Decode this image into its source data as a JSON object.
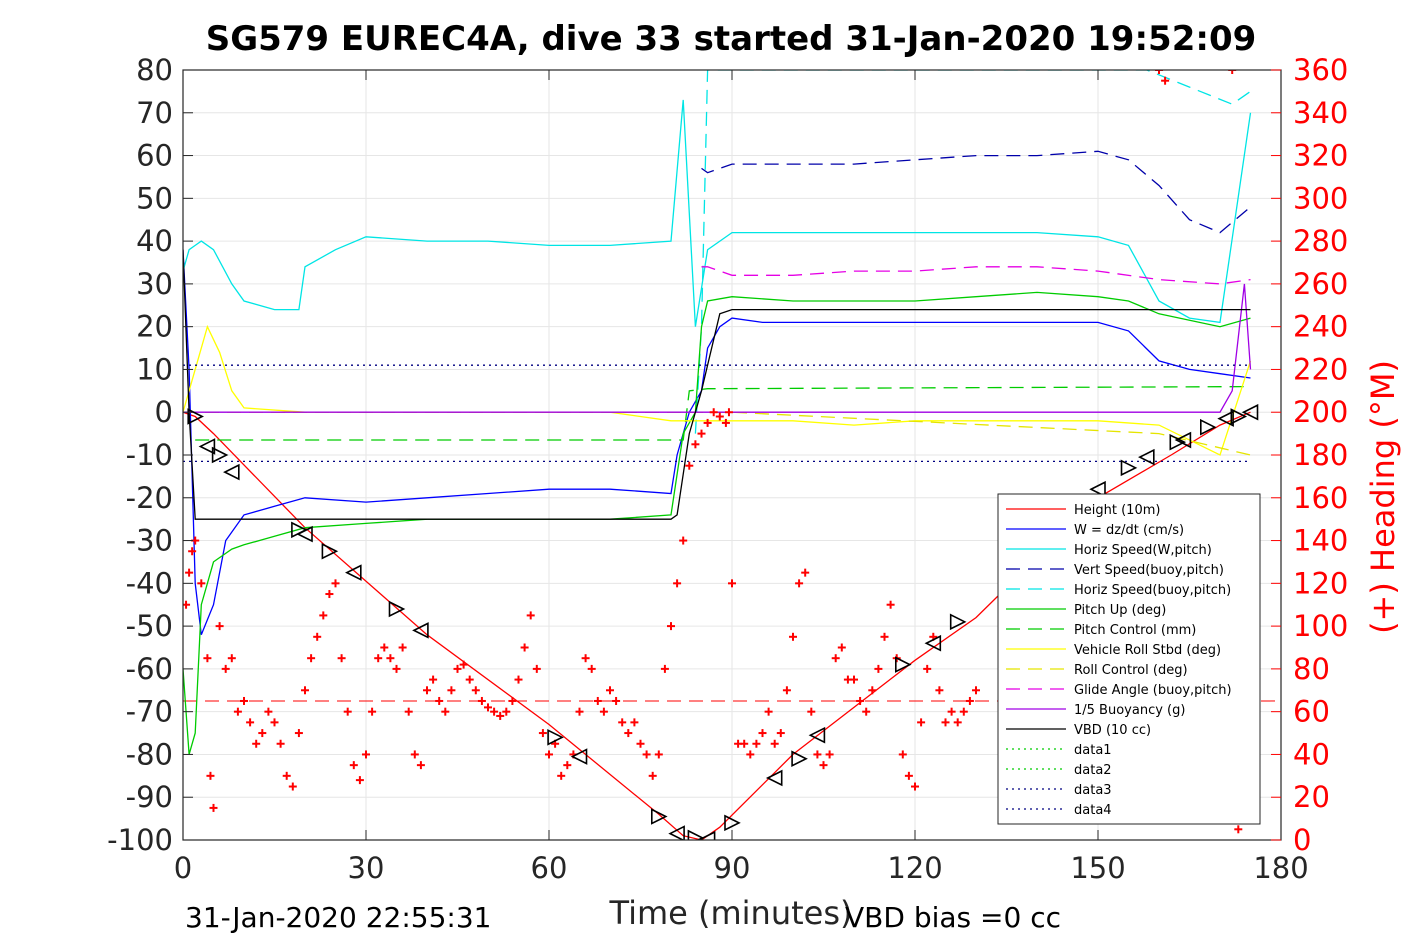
{
  "chart_data": {
    "type": "line",
    "title": "SG579 EUREC4A, dive 33 started 31-Jan-2020 19:52:09",
    "xlabel": "Time (minutes)",
    "ylabel_left": "",
    "ylabel_right": "(+) Heading (°M)",
    "xlim": [
      0,
      180
    ],
    "ylim_left": [
      -100,
      80
    ],
    "ylim_right": [
      0,
      360
    ],
    "x_ticks": [
      "0",
      "30",
      "60",
      "90",
      "120",
      "150",
      "180"
    ],
    "y_ticks_left": [
      "80",
      "70",
      "60",
      "50",
      "40",
      "30",
      "20",
      "10",
      "0",
      "-10",
      "-20",
      "-30",
      "-40",
      "-50",
      "-60",
      "-70",
      "-80",
      "-90",
      "-100"
    ],
    "y_ticks_right": [
      "360",
      "340",
      "320",
      "300",
      "280",
      "260",
      "240",
      "220",
      "200",
      "180",
      "160",
      "140",
      "120",
      "100",
      "80",
      "60",
      "40",
      "20",
      "0"
    ],
    "grid": true,
    "legend_position": "bottom-right",
    "footer_left": "31-Jan-2020 22:55:31",
    "footer_right": "VBD bias =0 cc",
    "series": [
      {
        "name": "Height (10m)",
        "color": "#ff0000",
        "style": "solid",
        "x": [
          0,
          1,
          2,
          5,
          20,
          40,
          60,
          78,
          82,
          85,
          88,
          100,
          120,
          130,
          150,
          162,
          170,
          175
        ],
        "y": [
          0,
          -0.5,
          -1,
          -5,
          -27,
          -52,
          -73,
          -94,
          -99,
          -100,
          -97,
          -80,
          -58,
          -48,
          -20,
          -10,
          -3,
          0
        ]
      },
      {
        "name": "W = dz/dt (cm/s)",
        "color": "#0000ff",
        "style": "solid",
        "x": [
          0,
          1,
          2,
          3,
          5,
          7,
          10,
          15,
          20,
          30,
          40,
          50,
          60,
          70,
          80,
          81,
          83,
          85,
          86,
          88,
          90,
          95,
          100,
          110,
          120,
          130,
          140,
          150,
          155,
          160,
          165,
          170,
          175
        ],
        "y": [
          38,
          10,
          -40,
          -52,
          -45,
          -30,
          -24,
          -22,
          -20,
          -21,
          -20,
          -19,
          -18,
          -18,
          -19,
          -10,
          0,
          5,
          15,
          20,
          22,
          21,
          21,
          21,
          21,
          21,
          21,
          21,
          19,
          12,
          10,
          9,
          8
        ]
      },
      {
        "name": "Horiz Speed(W,pitch)",
        "color": "#00e5e5",
        "style": "solid",
        "x": [
          0,
          1,
          2,
          3,
          5,
          8,
          10,
          15,
          19,
          20,
          25,
          30,
          40,
          50,
          60,
          70,
          80,
          82,
          84,
          86,
          90,
          95,
          100,
          110,
          120,
          130,
          140,
          150,
          155,
          160,
          165,
          170,
          175
        ],
        "y": [
          33,
          38,
          39,
          40,
          38,
          30,
          26,
          24,
          24,
          34,
          38,
          41,
          40,
          40,
          39,
          39,
          40,
          73,
          20,
          38,
          42,
          42,
          42,
          42,
          42,
          42,
          42,
          41,
          39,
          26,
          22,
          21,
          70
        ]
      },
      {
        "name": "Vert Speed(buoy,pitch)",
        "color": "#0000aa",
        "style": "dashed",
        "x": [
          85,
          86,
          90,
          100,
          110,
          120,
          130,
          140,
          150,
          155,
          160,
          165,
          170,
          175
        ],
        "y": [
          57,
          56,
          58,
          58,
          58,
          59,
          60,
          60,
          61,
          59,
          53,
          45,
          42,
          48
        ]
      },
      {
        "name": "Horiz Speed(buoy,pitch)",
        "color": "#00e5e5",
        "style": "dashed",
        "x": [
          84,
          85,
          86,
          150,
          158,
          165,
          172,
          175
        ],
        "y": [
          -5,
          20,
          80,
          80,
          80,
          76,
          72,
          75
        ]
      },
      {
        "name": "Pitch Up (deg)",
        "color": "#00cc00",
        "style": "solid",
        "x": [
          0,
          1,
          2,
          3,
          5,
          8,
          10,
          15,
          20,
          30,
          40,
          50,
          60,
          70,
          80,
          82,
          84,
          85,
          86,
          90,
          100,
          110,
          120,
          130,
          140,
          150,
          155,
          160,
          170,
          175
        ],
        "y": [
          -60,
          -80,
          -75,
          -45,
          -35,
          -32,
          -31,
          -29,
          -27,
          -26,
          -25,
          -25,
          -25,
          -25,
          -24,
          -5,
          0,
          20,
          26,
          27,
          26,
          26,
          26,
          27,
          28,
          27,
          26,
          23,
          20,
          22
        ]
      },
      {
        "name": "Pitch Control (mm)",
        "color": "#00cc00",
        "style": "dashed",
        "x": [
          2,
          82,
          83,
          86,
          175
        ],
        "y": [
          -6.5,
          -6.5,
          5,
          5.5,
          6
        ]
      },
      {
        "name": "Vehicle Roll Stbd (deg)",
        "color": "#ffff00",
        "style": "solid",
        "x": [
          0,
          2,
          4,
          6,
          8,
          10,
          20,
          30,
          40,
          50,
          60,
          70,
          80,
          90,
          100,
          110,
          120,
          130,
          140,
          150,
          160,
          170,
          175
        ],
        "y": [
          0,
          10,
          20,
          14,
          5,
          1,
          0,
          0,
          0,
          0,
          0,
          0,
          -2,
          -2,
          -2,
          -3,
          -2,
          -2,
          -2,
          -2,
          -3,
          -10,
          12
        ]
      },
      {
        "name": "Roll Control (deg)",
        "color": "#e5e500",
        "style": "dashed",
        "x": [
          0,
          80,
          90,
          160,
          175
        ],
        "y": [
          0,
          0,
          0,
          -5,
          -10
        ]
      },
      {
        "name": "Glide Angle (buoy,pitch)",
        "color": "#e500e5",
        "style": "dashed",
        "x": [
          85,
          86,
          90,
          100,
          110,
          120,
          130,
          140,
          150,
          160,
          170,
          175
        ],
        "y": [
          34,
          34,
          32,
          32,
          33,
          33,
          34,
          34,
          33,
          31,
          30,
          31
        ]
      },
      {
        "name": "1/5 Buoyancy (g)",
        "color": "#a000e5",
        "style": "solid",
        "x": [
          0,
          80,
          84,
          170,
          172,
          174,
          175
        ],
        "y": [
          0,
          0,
          0,
          0,
          5,
          30,
          10
        ]
      },
      {
        "name": "VBD (10 cc)",
        "color": "#000000",
        "style": "solid",
        "x": [
          0,
          1,
          2,
          80,
          81,
          83,
          85,
          88,
          90,
          175
        ],
        "y": [
          38,
          0,
          -25,
          -25,
          -24,
          -5,
          5,
          23,
          24,
          24
        ]
      },
      {
        "name": "data1",
        "color": "#00cc00",
        "style": "dotted",
        "x": [],
        "y": []
      },
      {
        "name": "data2",
        "color": "#00cc00",
        "style": "dotted",
        "x": [],
        "y": []
      },
      {
        "name": "data3",
        "color": "#000080",
        "style": "dotted",
        "x": [
          0,
          175
        ],
        "y": [
          11,
          11
        ]
      },
      {
        "name": "data4",
        "color": "#000080",
        "style": "dotted",
        "x": [
          0,
          175
        ],
        "y": [
          -11.5,
          -11.5
        ]
      }
    ],
    "heading_series": {
      "name": "(+) Heading (°M)",
      "color": "#ff0000",
      "marker": "+",
      "axis": "right",
      "mean": 65,
      "x": [
        0.5,
        1,
        1.5,
        2,
        3,
        4,
        4.5,
        5,
        6,
        7,
        8,
        9,
        10,
        11,
        12,
        13,
        14,
        15,
        16,
        17,
        18,
        19,
        20,
        21,
        22,
        23,
        24,
        25,
        26,
        27,
        28,
        29,
        30,
        31,
        32,
        33,
        34,
        35,
        36,
        37,
        38,
        39,
        40,
        41,
        42,
        43,
        44,
        45,
        46,
        47,
        48,
        49,
        50,
        51,
        52,
        53,
        54,
        55,
        56,
        57,
        58,
        59,
        60,
        61,
        62,
        63,
        64,
        65,
        66,
        67,
        68,
        69,
        70,
        71,
        72,
        73,
        74,
        75,
        76,
        77,
        78,
        79,
        80,
        81,
        82,
        83,
        84,
        85,
        86,
        87,
        88,
        89,
        89.5,
        90,
        91,
        92,
        93,
        94,
        95,
        96,
        97,
        98,
        99,
        100,
        101,
        102,
        103,
        104,
        105,
        106,
        107,
        108,
        109,
        110,
        111,
        112,
        113,
        114,
        115,
        116,
        117,
        118,
        119,
        120,
        121,
        122,
        123,
        124,
        125,
        126,
        127,
        128,
        129,
        130,
        160,
        161,
        172,
        173
      ],
      "y": [
        110,
        125,
        135,
        140,
        120,
        85,
        30,
        15,
        100,
        80,
        85,
        60,
        65,
        55,
        45,
        50,
        60,
        55,
        45,
        30,
        25,
        50,
        70,
        85,
        95,
        105,
        115,
        120,
        85,
        60,
        35,
        28,
        40,
        60,
        85,
        90,
        85,
        80,
        90,
        60,
        40,
        35,
        70,
        75,
        65,
        60,
        70,
        80,
        82,
        75,
        70,
        65,
        62,
        60,
        58,
        60,
        65,
        75,
        90,
        105,
        80,
        50,
        40,
        45,
        30,
        35,
        40,
        60,
        85,
        80,
        65,
        60,
        70,
        65,
        55,
        50,
        55,
        45,
        40,
        30,
        40,
        80,
        100,
        120,
        140,
        175,
        185,
        190,
        195,
        200,
        198,
        195,
        200,
        120,
        45,
        45,
        40,
        45,
        50,
        60,
        45,
        50,
        70,
        95,
        120,
        125,
        60,
        40,
        35,
        40,
        85,
        90,
        75,
        75,
        65,
        60,
        70,
        80,
        95,
        110,
        85,
        40,
        30,
        25,
        55,
        80,
        95,
        70,
        55,
        60,
        55,
        60,
        65,
        70,
        360,
        355,
        360,
        5
      ]
    },
    "triangle_markers": {
      "color": "#000000",
      "x": [
        2,
        4,
        6,
        8,
        19,
        20,
        24,
        28,
        35,
        39,
        61,
        65,
        78,
        81,
        84,
        86,
        90,
        97,
        101,
        104,
        118,
        123,
        127,
        150,
        155,
        158,
        163,
        164,
        168,
        171,
        173,
        175
      ],
      "y": [
        -1,
        -8,
        -10,
        -14,
        -27.5,
        -28.5,
        -32.5,
        -37.5,
        -46,
        -51,
        -76,
        -80.5,
        -94.5,
        -98.5,
        -99.5,
        -99.8,
        -96,
        -85.5,
        -81,
        -75.5,
        -59,
        -54,
        -49,
        -18,
        -13,
        -10.5,
        -7,
        -6.5,
        -3.5,
        -1.5,
        -1,
        0
      ]
    }
  }
}
